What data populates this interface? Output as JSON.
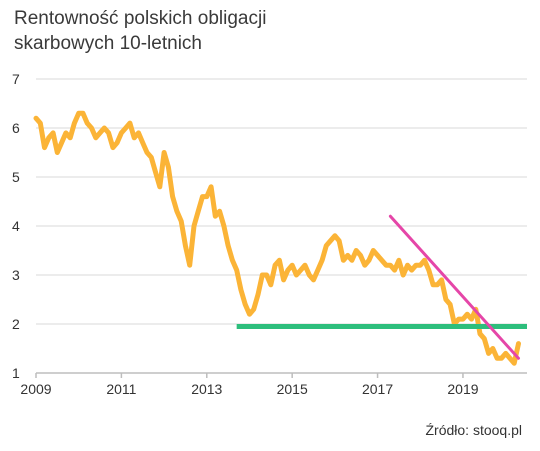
{
  "chart_data": {
    "type": "line",
    "title_lines": [
      "Rentowność polskich obligacji",
      "skarbowych 10-letnich"
    ],
    "xlabel": "",
    "ylabel": "",
    "xlim": [
      2009,
      2020.5
    ],
    "ylim": [
      1,
      7
    ],
    "x_ticks": [
      2009,
      2011,
      2013,
      2015,
      2017,
      2019
    ],
    "x_tick_labels": [
      "2009",
      "2011",
      "2013",
      "2015",
      "2017",
      "2019"
    ],
    "y_ticks": [
      1,
      2,
      3,
      4,
      5,
      6,
      7
    ],
    "y_tick_labels": [
      "1",
      "2",
      "3",
      "4",
      "5",
      "6",
      "7"
    ],
    "grid": "horizontal",
    "legend": "none",
    "source": "Źródło: stooq.pl",
    "colors": {
      "series": "#FBB437",
      "support": "#2DBE7C",
      "trend": "#E546A8",
      "grid": "#d9d9d9",
      "title": "#3a3a3a"
    },
    "series": [
      {
        "x": [
          2009.0,
          2009.1,
          2009.2,
          2009.3,
          2009.4,
          2009.5,
          2009.6,
          2009.7,
          2009.8,
          2009.9,
          2010.0,
          2010.1,
          2010.2,
          2010.3,
          2010.4,
          2010.5,
          2010.6,
          2010.7,
          2010.8,
          2010.9,
          2011.0,
          2011.1,
          2011.2,
          2011.3,
          2011.4,
          2011.5,
          2011.6,
          2011.7,
          2011.8,
          2011.9,
          2012.0,
          2012.1,
          2012.2,
          2012.3,
          2012.4,
          2012.5,
          2012.6,
          2012.7,
          2012.8,
          2012.9,
          2013.0,
          2013.1,
          2013.2,
          2013.3,
          2013.4,
          2013.5,
          2013.6,
          2013.7,
          2013.8,
          2013.9,
          2014.0,
          2014.1,
          2014.2,
          2014.3,
          2014.4,
          2014.5,
          2014.6,
          2014.7,
          2014.8,
          2014.9,
          2015.0,
          2015.1,
          2015.2,
          2015.3,
          2015.4,
          2015.5,
          2015.6,
          2015.7,
          2015.8,
          2015.9,
          2016.0,
          2016.1,
          2016.2,
          2016.3,
          2016.4,
          2016.5,
          2016.6,
          2016.7,
          2016.8,
          2016.9,
          2017.0,
          2017.1,
          2017.2,
          2017.3,
          2017.4,
          2017.5,
          2017.6,
          2017.7,
          2017.8,
          2017.9,
          2018.0,
          2018.1,
          2018.2,
          2018.3,
          2018.4,
          2018.5,
          2018.6,
          2018.7,
          2018.8,
          2018.9,
          2019.0,
          2019.1,
          2019.2,
          2019.3,
          2019.4,
          2019.5,
          2019.6,
          2019.7,
          2019.8,
          2019.9,
          2020.0,
          2020.1,
          2020.2,
          2020.3
        ],
        "values": [
          6.2,
          6.1,
          5.6,
          5.8,
          5.9,
          5.5,
          5.7,
          5.9,
          5.8,
          6.1,
          6.3,
          6.3,
          6.1,
          6.0,
          5.8,
          5.9,
          6.0,
          5.9,
          5.6,
          5.7,
          5.9,
          6.0,
          6.1,
          5.8,
          5.9,
          5.7,
          5.5,
          5.4,
          5.1,
          4.8,
          5.5,
          5.2,
          4.6,
          4.3,
          4.1,
          3.6,
          3.2,
          4.0,
          4.3,
          4.6,
          4.6,
          4.8,
          4.2,
          4.3,
          4.0,
          3.6,
          3.3,
          3.1,
          2.7,
          2.4,
          2.2,
          2.3,
          2.6,
          3.0,
          3.0,
          2.8,
          3.2,
          3.3,
          2.9,
          3.1,
          3.2,
          3.0,
          3.1,
          3.2,
          3.0,
          2.9,
          3.1,
          3.3,
          3.6,
          3.7,
          3.8,
          3.7,
          3.3,
          3.4,
          3.3,
          3.5,
          3.4,
          3.2,
          3.3,
          3.5,
          3.4,
          3.3,
          3.2,
          3.2,
          3.1,
          3.3,
          3.0,
          3.2,
          3.1,
          3.2,
          3.2,
          3.3,
          3.1,
          2.8,
          2.8,
          2.9,
          2.5,
          2.4,
          2.0,
          2.1,
          2.1,
          2.2,
          2.1,
          2.3,
          1.8,
          1.7,
          1.4,
          1.5,
          1.3,
          1.3,
          1.4,
          1.3,
          1.2,
          1.6
        ]
      }
    ],
    "reference_lines": [
      {
        "type": "horizontal",
        "y": 1.95,
        "x_from": 2013.7,
        "x_to": 2020.5
      },
      {
        "type": "trend",
        "x": [
          2017.3,
          2020.3
        ],
        "y": [
          4.2,
          1.3
        ]
      }
    ]
  }
}
